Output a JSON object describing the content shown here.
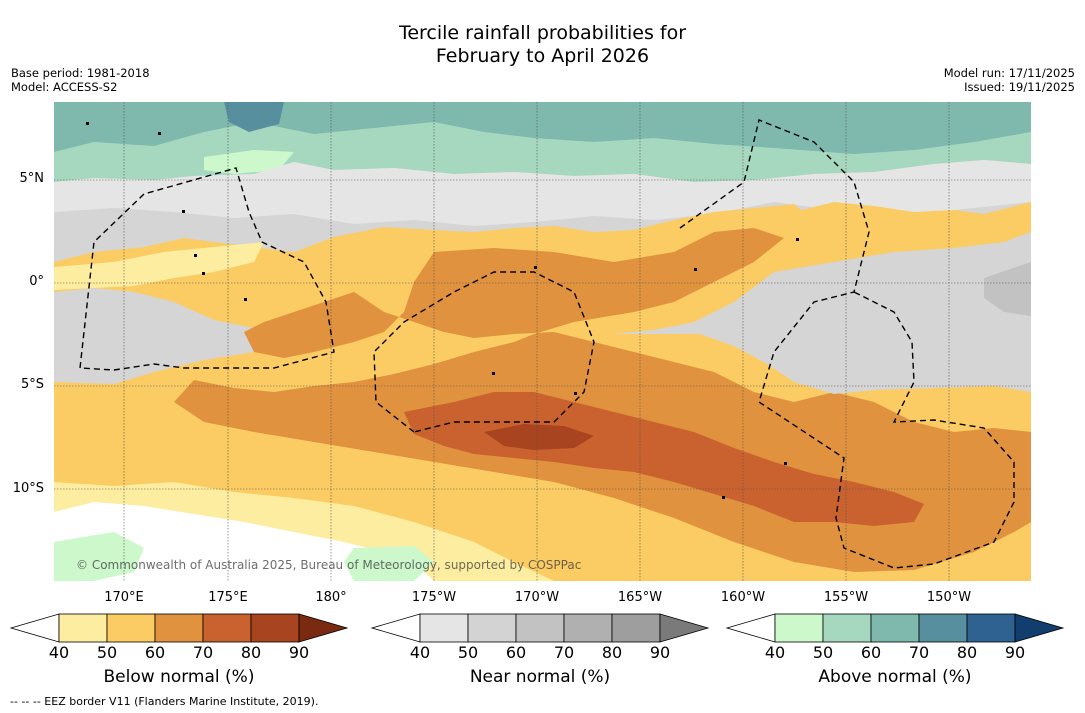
{
  "title": {
    "line1": "Tercile rainfall probabilities for",
    "line2": "February to April 2026"
  },
  "meta": {
    "base_period": "Base period: 1981-2018",
    "model": "Model: ACCESS-S2",
    "model_run": "Model run: 17/11/2025",
    "issued": "Issued: 19/11/2025"
  },
  "map": {
    "copyright": "© Commonwealth of Australia 2025, Bureau of Meteorology, supported by COSPPac",
    "lat_labels": [
      "5°N",
      "0°",
      "5°S",
      "10°S"
    ],
    "lon_labels": [
      "170°E",
      "175°E",
      "180°",
      "175°W",
      "170°W",
      "165°W",
      "160°W",
      "155°W",
      "150°W"
    ]
  },
  "colorbars": [
    {
      "title": "Below normal (%)",
      "ticks": [
        "40",
        "50",
        "60",
        "70",
        "80",
        "90"
      ],
      "colors": [
        "#fdeda0",
        "#fbcc63",
        "#e0923e",
        "#c9622f",
        "#a8441f",
        "#7a2a10"
      ]
    },
    {
      "title": "Near normal (%)",
      "ticks": [
        "40",
        "50",
        "60",
        "70",
        "80",
        "90"
      ],
      "colors": [
        "#e5e5e5",
        "#d3d3d3",
        "#c2c2c2",
        "#b0b0b0",
        "#9e9e9e",
        "#7a7a7a"
      ]
    },
    {
      "title": "Above normal (%)",
      "ticks": [
        "40",
        "50",
        "60",
        "70",
        "80",
        "90"
      ],
      "colors": [
        "#ccf8cc",
        "#a6d8c0",
        "#7fb8ad",
        "#588f9f",
        "#2f6290",
        "#123e6f"
      ]
    }
  ],
  "footnote": "--  --  -- EEZ border V11 (Flanders Marine Institute, 2019)."
}
